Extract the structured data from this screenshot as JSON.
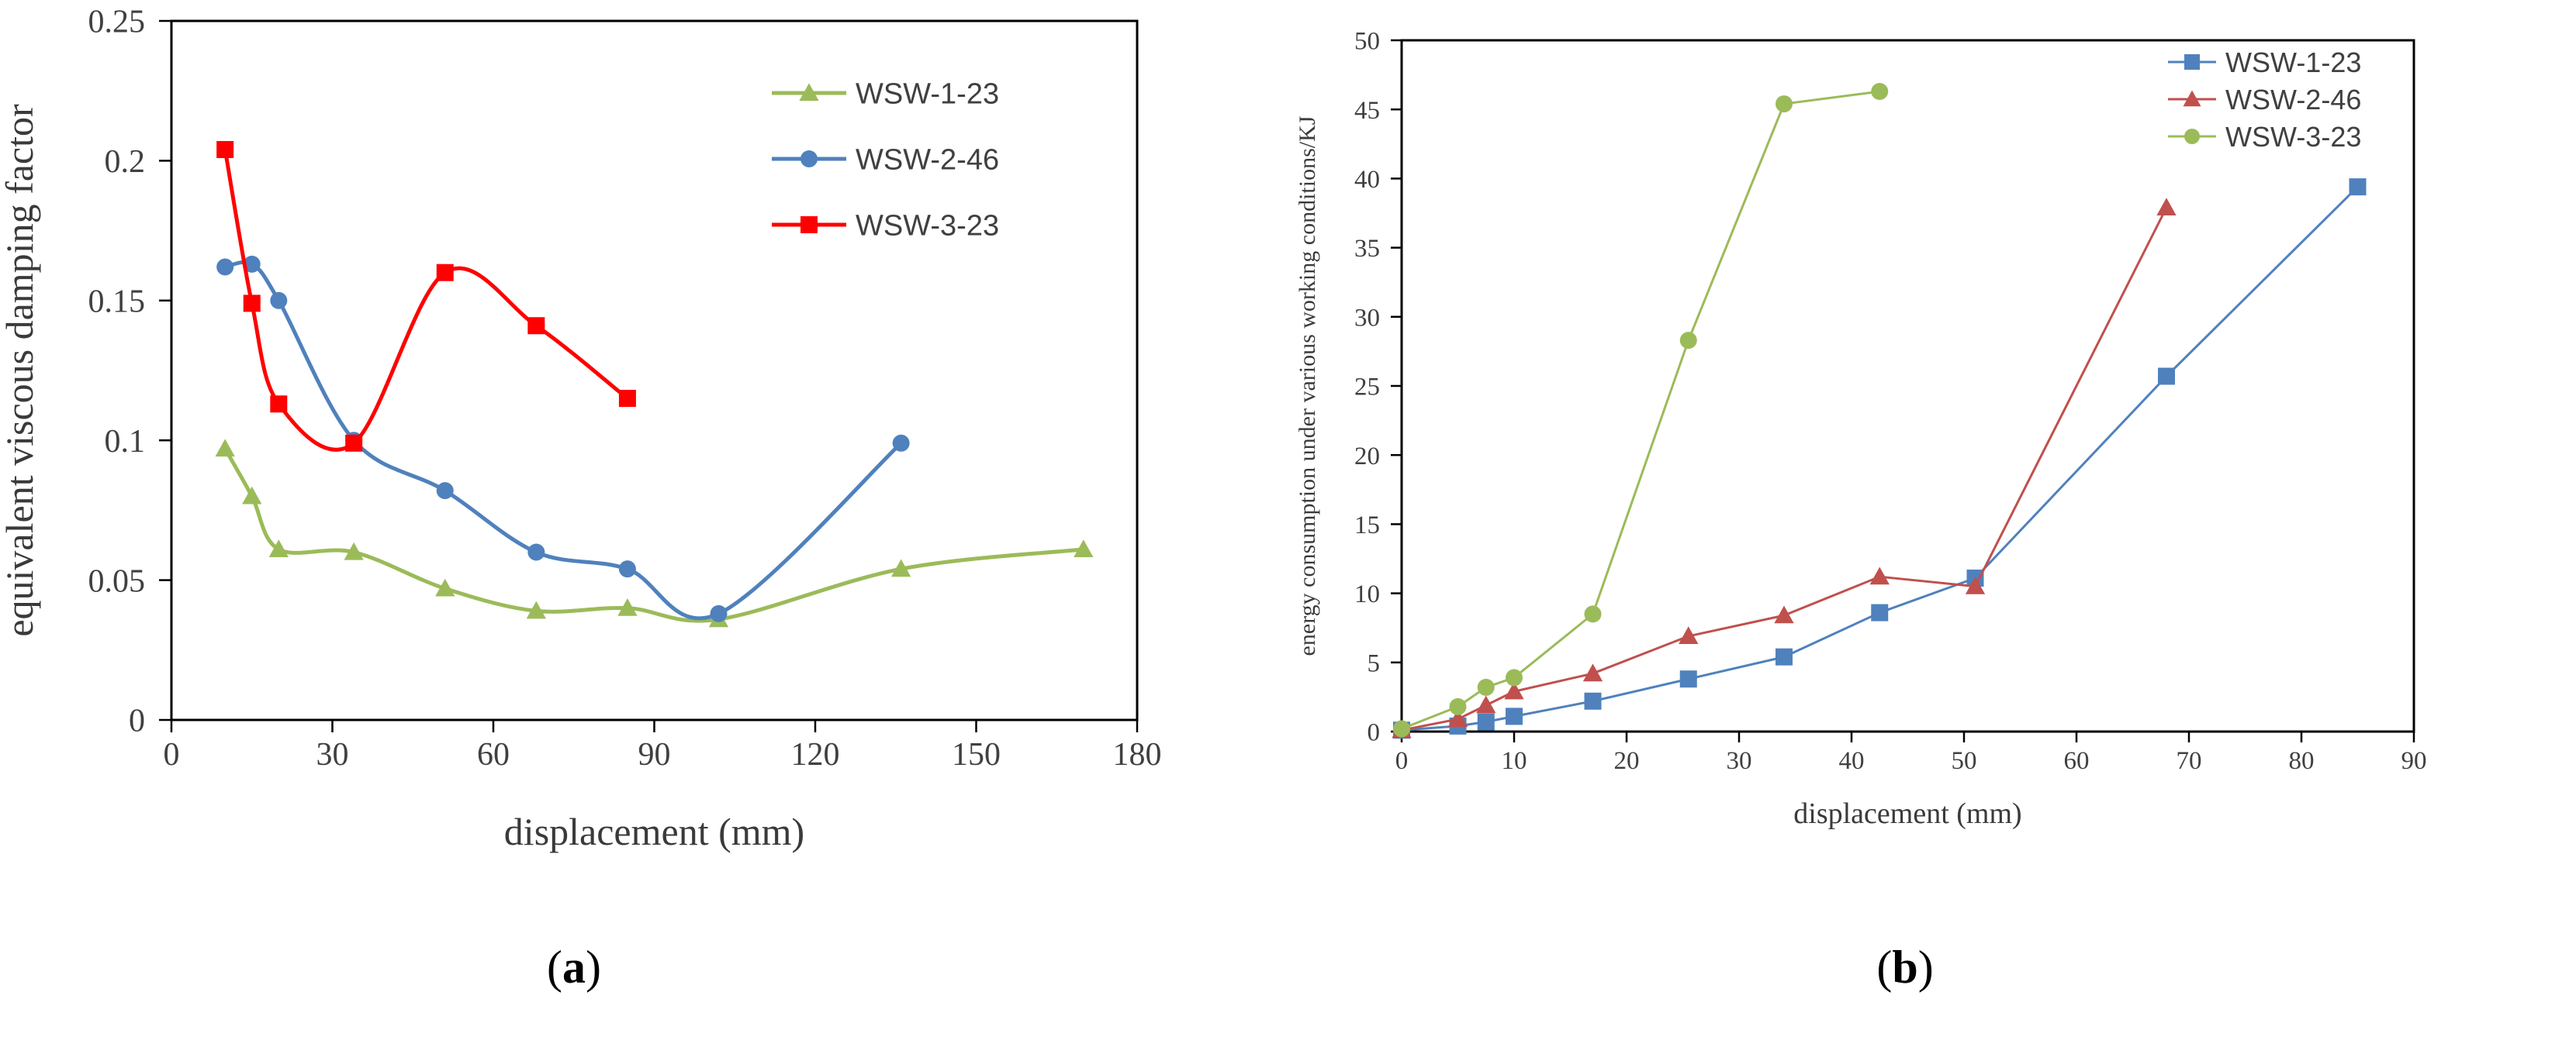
{
  "chart_data": [
    {
      "type": "line",
      "panel_label": "(a)",
      "panel_open": "(",
      "panel_letter": "a",
      "panel_close": ")",
      "xlabel": "displacement (mm)",
      "ylabel": "equivalent viscous damping factor",
      "xlim": [
        0,
        180
      ],
      "ylim": [
        0,
        0.25
      ],
      "xticks": [
        0,
        30,
        60,
        90,
        120,
        150,
        180
      ],
      "yticks": [
        0,
        0.05,
        0.1,
        0.15,
        0.2,
        0.25
      ],
      "xtick_labels": [
        "0",
        "30",
        "60",
        "90",
        "120",
        "150",
        "180"
      ],
      "ytick_labels": [
        "0",
        "0.05",
        "0.1",
        "0.15",
        "0.2",
        "0.25"
      ],
      "grid": false,
      "smooth": true,
      "legend_position": "top-right",
      "series": [
        {
          "name": "WSW-1-23",
          "color": "#9BBB59",
          "marker": "triangle",
          "x": [
            10,
            15,
            20,
            34,
            51,
            68,
            85,
            102,
            136,
            170
          ],
          "y": [
            0.097,
            0.08,
            0.061,
            0.06,
            0.047,
            0.039,
            0.04,
            0.036,
            0.054,
            0.061
          ]
        },
        {
          "name": "WSW-2-46",
          "color": "#4F81BD",
          "marker": "circle",
          "x": [
            10,
            15,
            20,
            34,
            51,
            68,
            85,
            102,
            136
          ],
          "y": [
            0.162,
            0.163,
            0.15,
            0.1,
            0.082,
            0.06,
            0.054,
            0.038,
            0.099
          ]
        },
        {
          "name": "WSW-3-23",
          "color": "#FF0000",
          "marker": "square",
          "x": [
            10,
            15,
            20,
            34,
            51,
            68,
            85
          ],
          "y": [
            0.204,
            0.149,
            0.113,
            0.099,
            0.16,
            0.141,
            0.115
          ]
        }
      ]
    },
    {
      "type": "line",
      "panel_label": "(b)",
      "panel_open": "(",
      "panel_letter": "b",
      "panel_close": ")",
      "xlabel": "displacement (mm)",
      "ylabel": "energy consumption under various working conditions/KJ",
      "xlim": [
        0,
        90
      ],
      "ylim": [
        0,
        50
      ],
      "xticks": [
        0,
        10,
        20,
        30,
        40,
        50,
        60,
        70,
        80,
        90
      ],
      "yticks": [
        0,
        5,
        10,
        15,
        20,
        25,
        30,
        35,
        40,
        45,
        50
      ],
      "xtick_labels": [
        "0",
        "10",
        "20",
        "30",
        "40",
        "50",
        "60",
        "70",
        "80",
        "90"
      ],
      "ytick_labels": [
        "0",
        "5",
        "10",
        "15",
        "20",
        "25",
        "30",
        "35",
        "40",
        "45",
        "50"
      ],
      "grid": false,
      "smooth": false,
      "legend_position": "top-right",
      "series": [
        {
          "name": "WSW-1-23",
          "color": "#4F81BD",
          "marker": "square",
          "x": [
            0,
            5,
            7.5,
            10,
            17,
            25.5,
            34,
            42.5,
            51,
            68,
            85
          ],
          "y": [
            0.1,
            0.4,
            0.7,
            1.1,
            2.2,
            3.8,
            5.4,
            8.6,
            11.1,
            25.7,
            39.4
          ]
        },
        {
          "name": "WSW-2-46",
          "color": "#C0504D",
          "marker": "triangle",
          "x": [
            0,
            5,
            7.5,
            10,
            17,
            25.5,
            34,
            42.5,
            51,
            68
          ],
          "y": [
            0.1,
            0.9,
            1.9,
            2.9,
            4.2,
            6.9,
            8.4,
            11.2,
            10.5,
            37.9
          ]
        },
        {
          "name": "WSW-3-23",
          "color": "#9BBB59",
          "marker": "circle",
          "x": [
            0,
            5,
            7.5,
            10,
            17,
            25.5,
            34,
            42.5
          ],
          "y": [
            0.2,
            1.8,
            3.2,
            3.9,
            8.5,
            28.3,
            45.4,
            46.3
          ]
        }
      ]
    }
  ]
}
